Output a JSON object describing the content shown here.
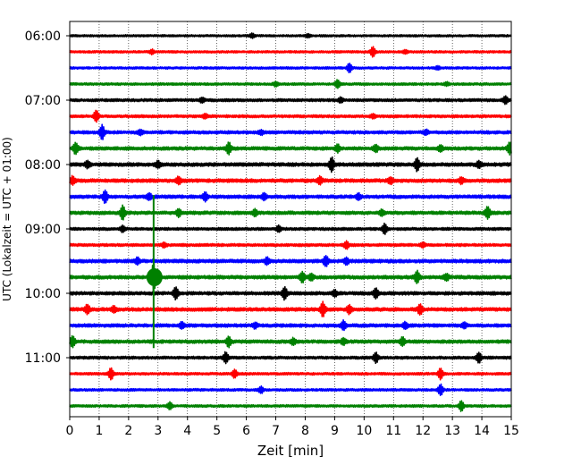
{
  "chart_data": {
    "type": "line",
    "xlabel": "Zeit  [min]",
    "ylabel": "UTC (Lokalzeit = UTC + 01:00)",
    "xlim": [
      0,
      15
    ],
    "x_ticks": [
      0,
      1,
      2,
      3,
      4,
      5,
      6,
      7,
      8,
      9,
      10,
      11,
      12,
      13,
      14,
      15
    ],
    "x_grid": true,
    "y_tick_labels": [
      "06:00",
      "07:00",
      "08:00",
      "09:00",
      "10:00",
      "11:00"
    ],
    "trace_interval_minutes": 15,
    "trace_colors": [
      "#000000",
      "#ff0000",
      "#0000ff",
      "#008000"
    ],
    "traces": [
      {
        "start": "06:00",
        "color": "#000000",
        "amp": 1.2,
        "events": [
          [
            6.2,
            2.0
          ],
          [
            8.1,
            1.4
          ]
        ]
      },
      {
        "start": "06:15",
        "color": "#ff0000",
        "amp": 1.3,
        "events": [
          [
            2.8,
            2.0
          ],
          [
            10.3,
            5.0
          ],
          [
            11.4,
            1.6
          ]
        ]
      },
      {
        "start": "06:30",
        "color": "#0000ff",
        "amp": 1.3,
        "events": [
          [
            9.5,
            4.5
          ],
          [
            12.5,
            1.4
          ]
        ]
      },
      {
        "start": "06:45",
        "color": "#008000",
        "amp": 1.4,
        "events": [
          [
            7.0,
            2.2
          ],
          [
            9.1,
            4.0
          ],
          [
            12.8,
            1.6
          ]
        ]
      },
      {
        "start": "07:00",
        "color": "#000000",
        "amp": 1.6,
        "events": [
          [
            4.5,
            2.2
          ],
          [
            9.2,
            2.2
          ],
          [
            14.8,
            3.5
          ]
        ]
      },
      {
        "start": "07:15",
        "color": "#ff0000",
        "amp": 1.6,
        "events": [
          [
            0.9,
            5.5
          ],
          [
            4.6,
            1.8
          ],
          [
            10.3,
            2.0
          ]
        ]
      },
      {
        "start": "07:30",
        "color": "#0000ff",
        "amp": 1.8,
        "events": [
          [
            1.1,
            7.0
          ],
          [
            2.4,
            2.0
          ],
          [
            6.5,
            2.0
          ],
          [
            12.1,
            2.2
          ]
        ]
      },
      {
        "start": "07:45",
        "color": "#008000",
        "amp": 1.9,
        "events": [
          [
            0.2,
            5.5
          ],
          [
            5.4,
            6.0
          ],
          [
            9.1,
            3.5
          ],
          [
            10.4,
            3.5
          ],
          [
            12.6,
            3.0
          ],
          [
            14.95,
            6.0
          ]
        ]
      },
      {
        "start": "08:00",
        "color": "#000000",
        "amp": 2.0,
        "events": [
          [
            0.6,
            3.0
          ],
          [
            3.0,
            3.0
          ],
          [
            8.9,
            7.0
          ],
          [
            11.8,
            6.0
          ],
          [
            13.9,
            3.0
          ]
        ]
      },
      {
        "start": "08:15",
        "color": "#ff0000",
        "amp": 2.0,
        "events": [
          [
            0.1,
            4.0
          ],
          [
            3.7,
            3.5
          ],
          [
            8.5,
            3.5
          ],
          [
            10.9,
            3.0
          ],
          [
            13.3,
            3.0
          ]
        ]
      },
      {
        "start": "08:30",
        "color": "#0000ff",
        "amp": 1.9,
        "events": [
          [
            1.2,
            6.0
          ],
          [
            2.7,
            3.0
          ],
          [
            4.6,
            4.0
          ],
          [
            6.6,
            3.0
          ],
          [
            9.8,
            3.0
          ]
        ]
      },
      {
        "start": "08:45",
        "color": "#008000",
        "amp": 1.9,
        "events": [
          [
            1.8,
            7.0
          ],
          [
            3.7,
            3.5
          ],
          [
            6.3,
            3.0
          ],
          [
            10.6,
            3.0
          ],
          [
            14.2,
            6.0
          ]
        ]
      },
      {
        "start": "09:00",
        "color": "#000000",
        "amp": 1.6,
        "events": [
          [
            1.8,
            3.0
          ],
          [
            7.1,
            3.0
          ],
          [
            10.7,
            5.0
          ]
        ]
      },
      {
        "start": "09:15",
        "color": "#ff0000",
        "amp": 1.6,
        "events": [
          [
            3.2,
            2.0
          ],
          [
            9.4,
            3.5
          ],
          [
            12.0,
            2.0
          ]
        ]
      },
      {
        "start": "09:30",
        "color": "#0000ff",
        "amp": 2.0,
        "events": [
          [
            2.3,
            3.0
          ],
          [
            6.7,
            3.0
          ],
          [
            8.7,
            5.0
          ],
          [
            9.4,
            3.0
          ]
        ]
      },
      {
        "start": "09:45",
        "color": "#008000",
        "amp": 2.0,
        "events": [
          [
            2.85,
            14.0
          ],
          [
            7.9,
            5.0
          ],
          [
            8.2,
            3.0
          ],
          [
            11.8,
            6.0
          ],
          [
            12.8,
            3.0
          ]
        ]
      },
      {
        "start": "10:00",
        "color": "#000000",
        "amp": 1.9,
        "events": [
          [
            3.6,
            6.0
          ],
          [
            7.3,
            6.0
          ],
          [
            9.0,
            3.0
          ],
          [
            10.4,
            5.0
          ]
        ]
      },
      {
        "start": "10:15",
        "color": "#ff0000",
        "amp": 2.0,
        "events": [
          [
            0.6,
            4.5
          ],
          [
            1.5,
            3.0
          ],
          [
            8.6,
            7.0
          ],
          [
            9.5,
            4.0
          ],
          [
            11.9,
            5.0
          ]
        ]
      },
      {
        "start": "10:30",
        "color": "#0000ff",
        "amp": 1.9,
        "events": [
          [
            3.8,
            3.0
          ],
          [
            6.3,
            2.5
          ],
          [
            9.3,
            4.5
          ],
          [
            11.4,
            3.0
          ],
          [
            13.4,
            2.5
          ]
        ]
      },
      {
        "start": "10:45",
        "color": "#008000",
        "amp": 1.9,
        "events": [
          [
            0.1,
            5.5
          ],
          [
            5.4,
            5.0
          ],
          [
            7.6,
            3.0
          ],
          [
            9.3,
            3.0
          ],
          [
            11.3,
            4.0
          ]
        ]
      },
      {
        "start": "11:00",
        "color": "#000000",
        "amp": 1.6,
        "events": [
          [
            5.3,
            5.5
          ],
          [
            10.4,
            5.0
          ],
          [
            13.9,
            5.0
          ]
        ]
      },
      {
        "start": "11:15",
        "color": "#ff0000",
        "amp": 1.4,
        "events": [
          [
            1.4,
            6.0
          ],
          [
            5.6,
            4.0
          ],
          [
            12.6,
            5.5
          ]
        ]
      },
      {
        "start": "11:30",
        "color": "#0000ff",
        "amp": 1.4,
        "events": [
          [
            6.5,
            3.0
          ],
          [
            12.6,
            5.5
          ]
        ]
      },
      {
        "start": "11:45",
        "color": "#008000",
        "amp": 1.4,
        "events": [
          [
            3.4,
            3.5
          ],
          [
            13.3,
            5.0
          ]
        ]
      }
    ],
    "spike": {
      "trace": "09:45",
      "x": 2.85
    }
  }
}
